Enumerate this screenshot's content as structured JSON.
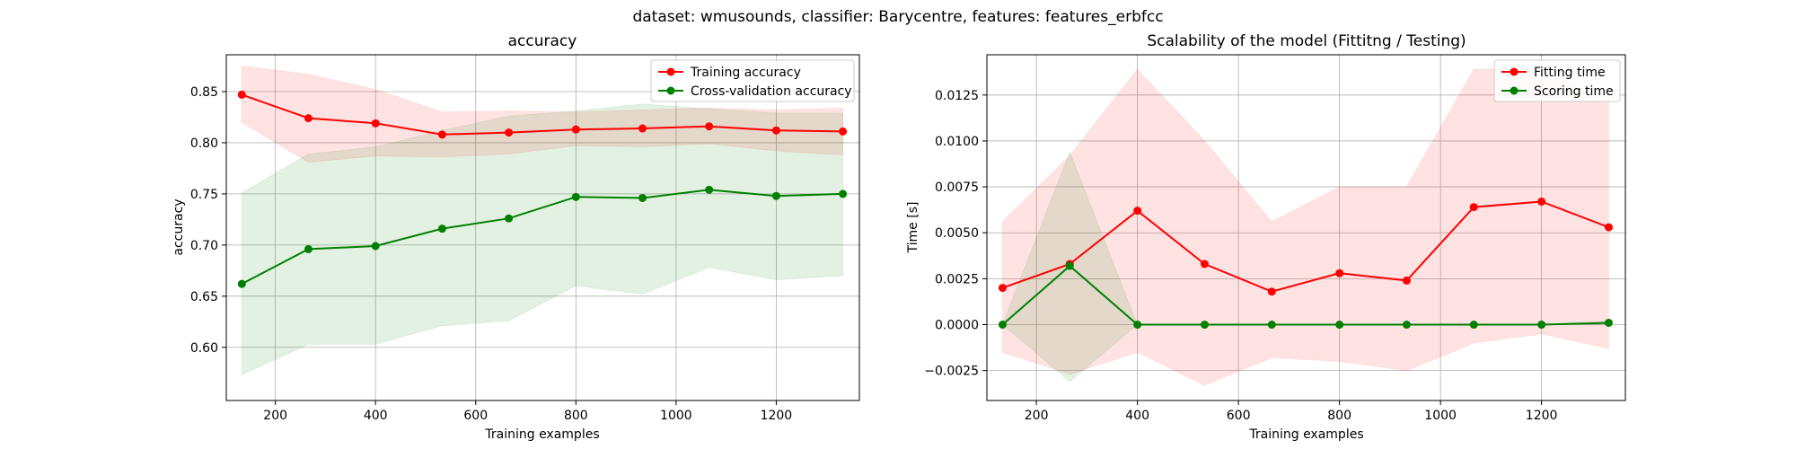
{
  "suptitle": "dataset: wmusounds, classifier: Barycentre, features: features_erbfcc",
  "chart_data": [
    {
      "type": "line",
      "title": "accuracy",
      "xlabel": "Training examples",
      "ylabel": "accuracy",
      "xlim": [
        102,
        1366
      ],
      "ylim": [
        0.548,
        0.886
      ],
      "xticks": [
        200,
        400,
        600,
        800,
        1000,
        1200
      ],
      "yticks": [
        0.6,
        0.65,
        0.7,
        0.75,
        0.8,
        0.85
      ],
      "ytick_labels": [
        "0.60",
        "0.65",
        "0.70",
        "0.75",
        "0.80",
        "0.85"
      ],
      "grid": true,
      "legend_position": "top-right",
      "x": [
        133,
        266,
        400,
        533,
        666,
        800,
        933,
        1066,
        1200,
        1333
      ],
      "series": [
        {
          "name": "Training accuracy",
          "color": "#ff0000",
          "values": [
            0.847,
            0.824,
            0.819,
            0.808,
            0.81,
            0.813,
            0.814,
            0.816,
            0.812,
            0.811
          ],
          "upper": [
            0.875,
            0.867,
            0.852,
            0.83,
            0.831,
            0.83,
            0.832,
            0.834,
            0.832,
            0.834
          ],
          "lower": [
            0.82,
            0.781,
            0.787,
            0.786,
            0.789,
            0.797,
            0.796,
            0.799,
            0.792,
            0.788
          ]
        },
        {
          "name": "Cross-validation accuracy",
          "color": "#008000",
          "values": [
            0.662,
            0.696,
            0.699,
            0.716,
            0.726,
            0.747,
            0.746,
            0.754,
            0.748,
            0.75
          ],
          "upper": [
            0.751,
            0.789,
            0.796,
            0.812,
            0.826,
            0.831,
            0.838,
            0.833,
            0.829,
            0.829
          ],
          "lower": [
            0.573,
            0.603,
            0.603,
            0.621,
            0.626,
            0.66,
            0.652,
            0.678,
            0.666,
            0.67
          ]
        }
      ]
    },
    {
      "type": "line",
      "title": "Scalability of the model (Fittitng / Testing)",
      "xlabel": "Training examples",
      "ylabel": "Time [s]",
      "xlim": [
        102,
        1366
      ],
      "ylim": [
        -0.00413,
        0.01469
      ],
      "xticks": [
        200,
        400,
        600,
        800,
        1000,
        1200
      ],
      "yticks": [
        -0.0025,
        0.0,
        0.0025,
        0.005,
        0.0075,
        0.01,
        0.0125
      ],
      "ytick_labels": [
        "−0.0025",
        "0.0000",
        "0.0025",
        "0.0050",
        "0.0075",
        "0.0100",
        "0.0125"
      ],
      "grid": true,
      "legend_position": "top-right",
      "x": [
        133,
        266,
        400,
        533,
        666,
        800,
        933,
        1066,
        1200,
        1333
      ],
      "series": [
        {
          "name": "Fitting time",
          "color": "#ff0000",
          "values": [
            0.002,
            0.0033,
            0.0062,
            0.0033,
            0.0018,
            0.0028,
            0.0024,
            0.0064,
            0.0067,
            0.0053
          ],
          "upper": [
            0.0056,
            0.0092,
            0.0139,
            0.01,
            0.0056,
            0.0075,
            0.0075,
            0.0139,
            0.0139,
            0.0121
          ],
          "lower": [
            -0.0015,
            -0.0027,
            -0.0015,
            -0.0033,
            -0.0018,
            -0.002,
            -0.0025,
            -0.001,
            -0.0005,
            -0.0013
          ]
        },
        {
          "name": "Scoring time",
          "color": "#008000",
          "values": [
            0.0,
            0.0032,
            0.0,
            0.0,
            0.0,
            0.0,
            0.0,
            0.0,
            0.0,
            0.0001
          ],
          "upper": [
            0.0,
            0.0094,
            0.0,
            0.0,
            0.0,
            0.0,
            0.0,
            0.0,
            0.0,
            0.0002
          ],
          "lower": [
            0.0,
            -0.0031,
            0.0,
            0.0,
            0.0,
            0.0,
            0.0,
            0.0,
            0.0,
            0.0
          ]
        }
      ]
    }
  ]
}
